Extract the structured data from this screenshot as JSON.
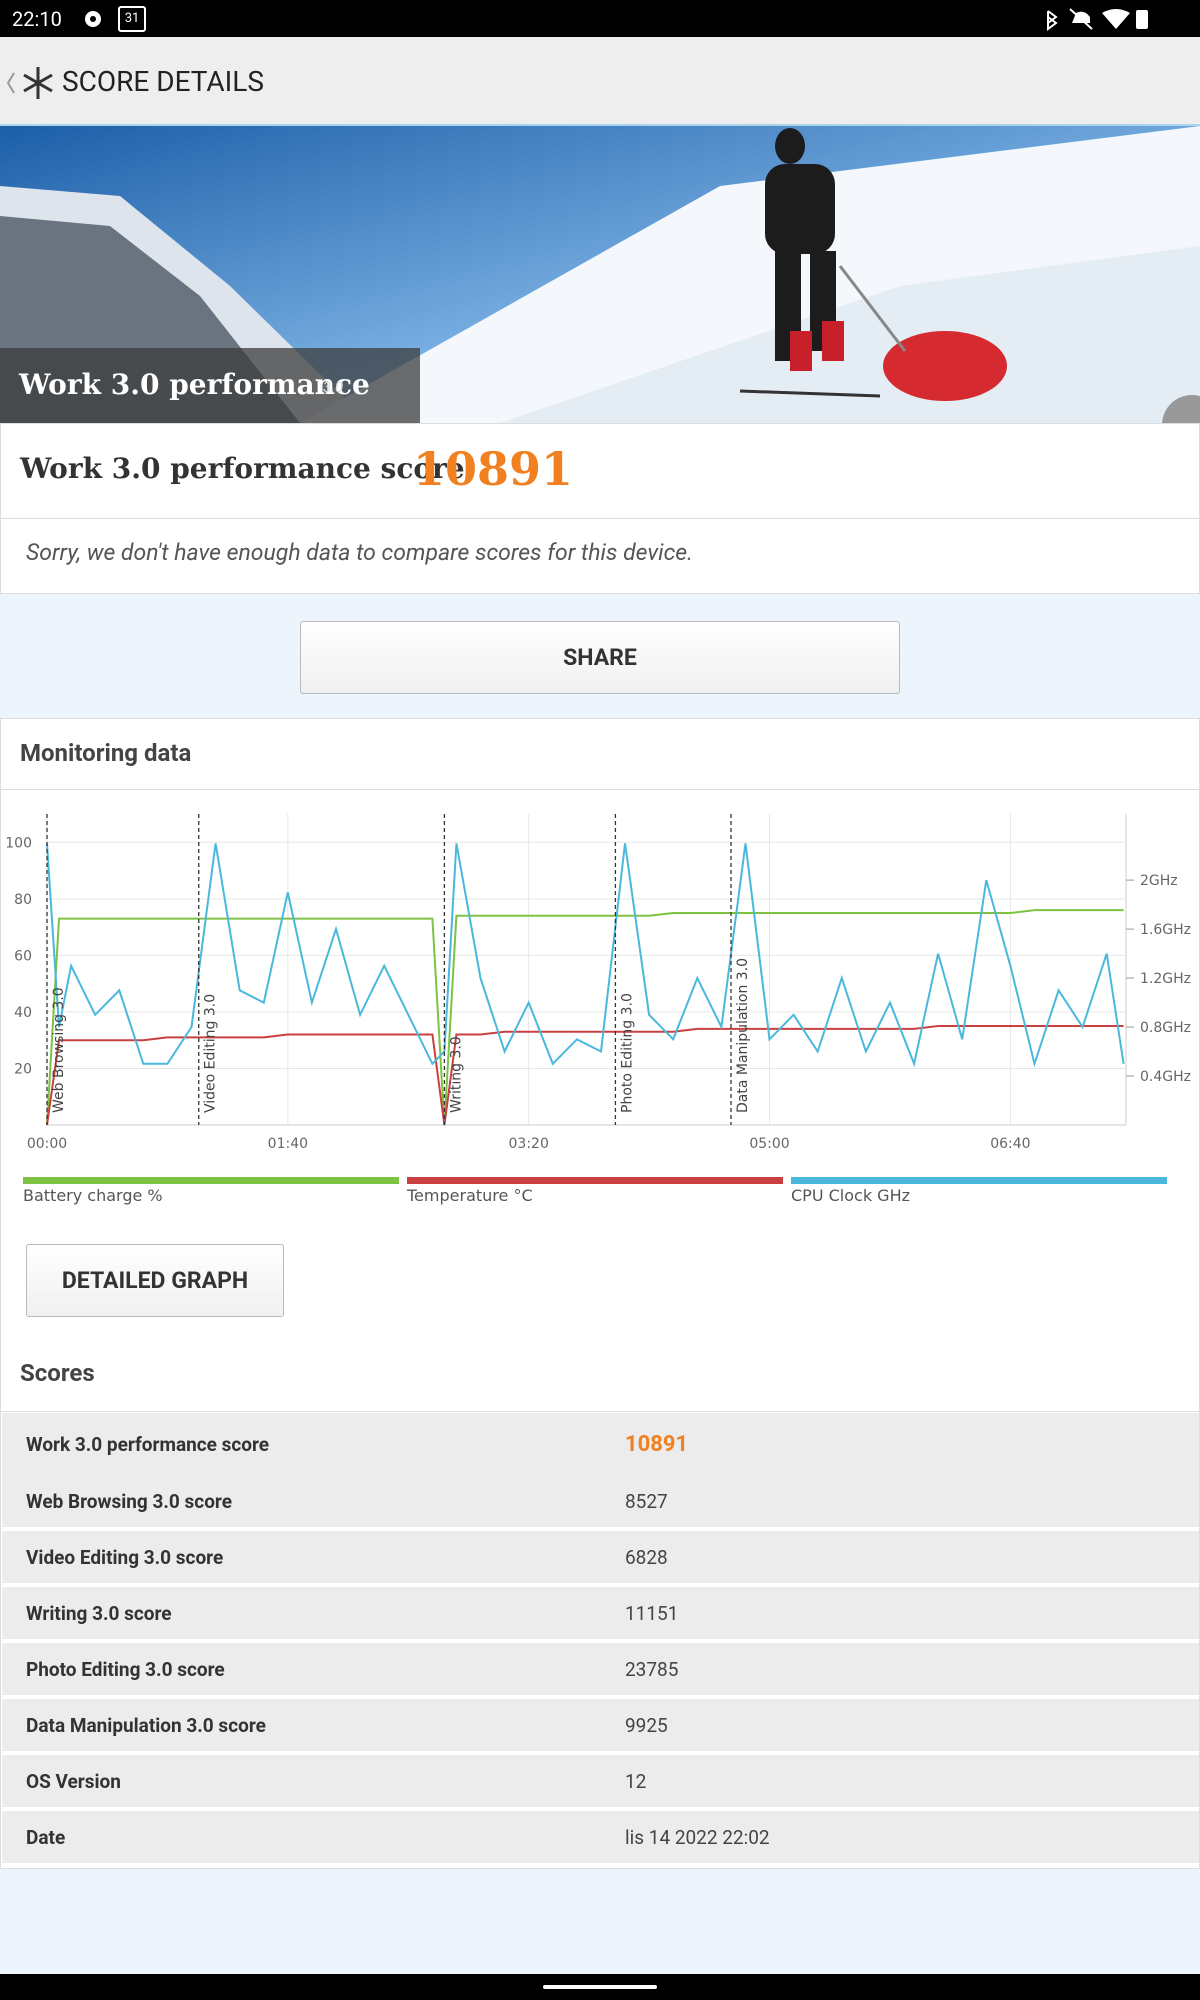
{
  "status_bar": {
    "time": "22:10",
    "calendar": "31"
  },
  "app_bar": {
    "title": "SCORE DETAILS"
  },
  "hero": {
    "title": "Work 3.0 performance",
    "version": "3.0"
  },
  "score": {
    "label": "Work 3.0 performance score",
    "value": 10891
  },
  "compare_note": "Sorry, we don't have enough data to compare scores for this device.",
  "share_button": "SHARE",
  "monitoring": {
    "title": "Monitoring data"
  },
  "chart_data": {
    "type": "line",
    "x": [
      0,
      5,
      10,
      20,
      30,
      40,
      50,
      60,
      70,
      80,
      90,
      100,
      110,
      120,
      130,
      140,
      150,
      160,
      165,
      170,
      180,
      190,
      200,
      210,
      220,
      230,
      240,
      250,
      260,
      270,
      280,
      290,
      300,
      310,
      320,
      330,
      340,
      350,
      360,
      370,
      380,
      390,
      400,
      410,
      420,
      430,
      440,
      447
    ],
    "xlim": [
      0,
      448
    ],
    "xticks": [
      {
        "value": 0,
        "label": "00:00"
      },
      {
        "value": 100,
        "label": "01:40"
      },
      {
        "value": 200,
        "label": "03:20"
      },
      {
        "value": 300,
        "label": "05:00"
      },
      {
        "value": 400,
        "label": "06:40"
      }
    ],
    "ylim": [
      0,
      110
    ],
    "yticks": [
      20,
      40,
      60,
      80,
      100
    ],
    "y2lim": [
      0,
      2.54
    ],
    "y2ticks": [
      {
        "value": 0.4,
        "label": "0.4GHz"
      },
      {
        "value": 0.8,
        "label": "0.8GHz"
      },
      {
        "value": 1.2,
        "label": "1.2GHz"
      },
      {
        "value": 1.6,
        "label": "1.6GHz"
      },
      {
        "value": 2,
        "label": "2GHz"
      }
    ],
    "grid": true,
    "series": [
      {
        "name": "Battery charge %",
        "color": "#7dc242",
        "values": [
          0,
          73,
          73,
          73,
          73,
          73,
          73,
          73,
          73,
          73,
          73,
          73,
          73,
          73,
          73,
          73,
          73,
          73,
          0,
          74,
          74,
          74,
          74,
          74,
          74,
          74,
          74,
          74,
          75,
          75,
          75,
          75,
          75,
          75,
          75,
          75,
          75,
          75,
          75,
          75,
          75,
          75,
          75,
          76,
          76,
          76,
          76,
          76
        ]
      },
      {
        "name": "Temperature °C",
        "color": "#c94040",
        "values": [
          0,
          30,
          30,
          30,
          30,
          30,
          31,
          31,
          31,
          31,
          31,
          32,
          32,
          32,
          32,
          32,
          32,
          32,
          0,
          32,
          32,
          33,
          33,
          33,
          33,
          33,
          33,
          33,
          33,
          34,
          34,
          34,
          34,
          34,
          34,
          34,
          34,
          34,
          34,
          35,
          35,
          35,
          35,
          35,
          35,
          35,
          35,
          35
        ]
      },
      {
        "name": "CPU Clock GHz",
        "color": "#4ab8dc",
        "axis": "y2",
        "values": [
          2.3,
          0.8,
          1.3,
          0.9,
          1.1,
          0.5,
          0.5,
          0.8,
          2.3,
          1.1,
          1.0,
          1.9,
          1.0,
          1.6,
          0.9,
          1.3,
          0.9,
          0.5,
          0.6,
          2.3,
          1.2,
          0.6,
          1.0,
          0.5,
          0.7,
          0.6,
          2.3,
          0.9,
          0.7,
          1.2,
          0.8,
          2.3,
          0.7,
          0.9,
          0.6,
          1.2,
          0.6,
          1.0,
          0.5,
          1.4,
          0.7,
          2.0,
          1.3,
          0.5,
          1.1,
          0.8,
          1.4,
          0.5
        ]
      }
    ],
    "markers": [
      {
        "x": 0,
        "label": "Web Browsing 3.0"
      },
      {
        "x": 63,
        "label": "Video Editing 3.0"
      },
      {
        "x": 165,
        "label": "Writing 3.0"
      },
      {
        "x": 236,
        "label": "Photo Editing 3.0"
      },
      {
        "x": 284,
        "label": "Data Manipulation 3.0"
      }
    ]
  },
  "detailed_graph_button": "DETAILED GRAPH",
  "scores": {
    "title": "Scores",
    "rows": [
      [
        "Work 3.0 performance score",
        10891
      ],
      [
        "Web Browsing 3.0 score",
        8527
      ],
      [
        "Video Editing 3.0 score",
        6828
      ],
      [
        "Writing 3.0 score",
        11151
      ],
      [
        "Photo Editing 3.0 score",
        23785
      ],
      [
        "Data Manipulation 3.0 score",
        9925
      ],
      [
        "OS Version",
        "12"
      ],
      [
        "Date",
        "lis 14 2022 22:02"
      ]
    ]
  }
}
